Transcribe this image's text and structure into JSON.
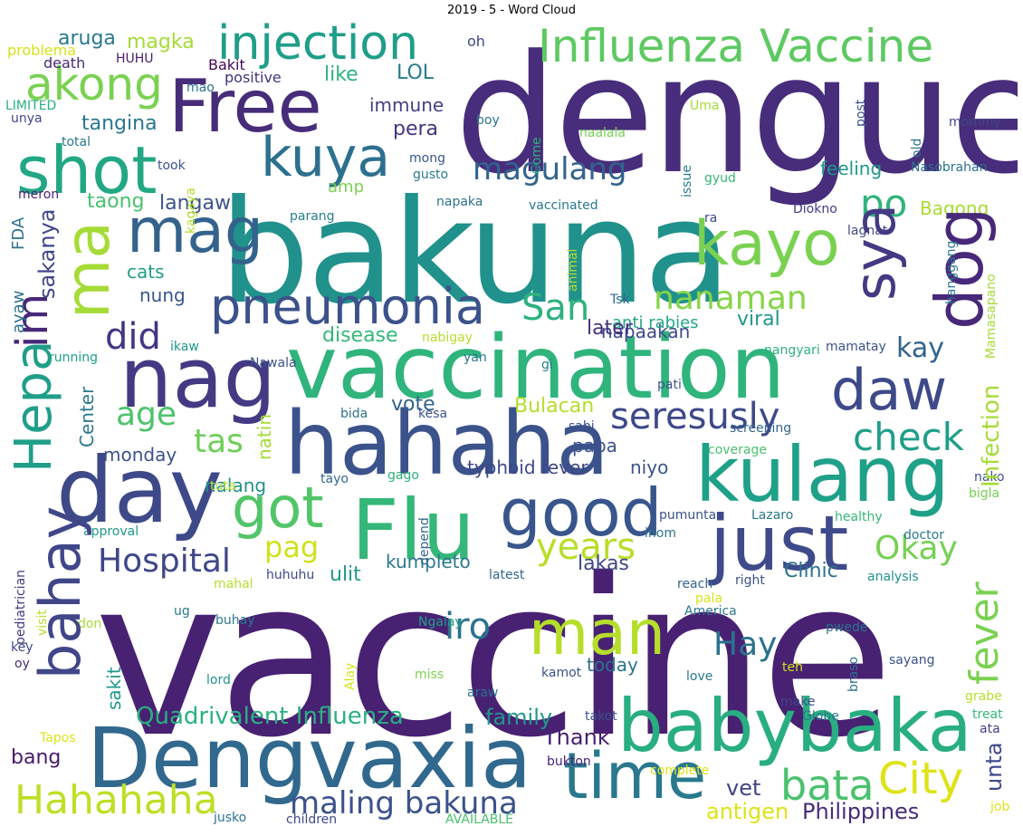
{
  "title": "2019 - 5 - Word Cloud",
  "words": [
    {
      "text": "vaccine",
      "color": "#482173"
    },
    {
      "text": "dengue",
      "color": "#472d7b"
    },
    {
      "text": "bakuna",
      "color": "#21918c"
    },
    {
      "text": "vaccination",
      "color": "#2fb47c"
    },
    {
      "text": "hahaha",
      "color": "#3b528b"
    },
    {
      "text": "Dengvaxia",
      "color": "#31688e"
    },
    {
      "text": "babybaka",
      "color": "#28ae80"
    },
    {
      "text": "day",
      "color": "#3e4989"
    },
    {
      "text": "Flu",
      "color": "#35b779"
    },
    {
      "text": "kulang",
      "color": "#1fa088"
    },
    {
      "text": "just",
      "color": "#3e4a89"
    },
    {
      "text": "nag",
      "color": "#443a83"
    },
    {
      "text": "Free",
      "color": "#472c7a"
    },
    {
      "text": "shot",
      "color": "#22a785"
    },
    {
      "text": "Influenza Vaccine",
      "color": "#5ec962"
    },
    {
      "text": "injection",
      "color": "#1f9e89"
    },
    {
      "text": "kayo",
      "color": "#7ad151"
    },
    {
      "text": "good",
      "color": "#39568c"
    },
    {
      "text": "time",
      "color": "#2a788e"
    },
    {
      "text": "man",
      "color": "#b5de2b"
    },
    {
      "text": "pneumonia",
      "color": "#3b528b"
    },
    {
      "text": "kuya",
      "color": "#2d708e"
    },
    {
      "text": "mag",
      "color": "#33628d"
    },
    {
      "text": "akong",
      "color": "#7ad151"
    },
    {
      "text": "got",
      "color": "#52c569"
    },
    {
      "text": "daw",
      "color": "#3e4989"
    },
    {
      "text": "Hahahaha",
      "color": "#bddf26"
    },
    {
      "text": "City",
      "color": "#dde318"
    },
    {
      "text": "bata",
      "color": "#4ac16d"
    },
    {
      "text": "maling bakuna",
      "color": "#3b528b"
    },
    {
      "text": "magulang",
      "color": "#33638d"
    },
    {
      "text": "seresusly",
      "color": "#3e4989"
    },
    {
      "text": "San",
      "color": "#2db27d"
    },
    {
      "text": "nanaman",
      "color": "#86d549"
    },
    {
      "text": "check",
      "color": "#1f9e89"
    },
    {
      "text": "years",
      "color": "#b8de29"
    },
    {
      "text": "Hospital",
      "color": "#3f4788"
    },
    {
      "text": "po",
      "color": "#2fb47c"
    },
    {
      "text": "Okay",
      "color": "#75d054"
    },
    {
      "text": "did",
      "color": "#453581"
    },
    {
      "text": "age",
      "color": "#4ec36b"
    },
    {
      "text": "tas",
      "color": "#6ece58"
    },
    {
      "text": "iro",
      "color": "#2c728e"
    },
    {
      "text": "Hay",
      "color": "#2c728e"
    },
    {
      "text": "pag",
      "color": "#d0e11c"
    },
    {
      "text": "Quadrivalent Influenza",
      "color": "#2ab07f"
    },
    {
      "text": "kay",
      "color": "#33638d"
    },
    {
      "text": "Thank",
      "color": "#481f70"
    },
    {
      "text": "family",
      "color": "#1f988b"
    },
    {
      "text": "Philippines",
      "color": "#472c7a"
    },
    {
      "text": "antigen",
      "color": "#dde318"
    },
    {
      "text": "vet",
      "color": "#414487"
    },
    {
      "text": "aruga",
      "color": "#2a788e"
    },
    {
      "text": "magka",
      "color": "#a5db36"
    },
    {
      "text": "immune",
      "color": "#433e85"
    },
    {
      "text": "pera",
      "color": "#46337e"
    },
    {
      "text": "LOL",
      "color": "#287c8e"
    },
    {
      "text": "like",
      "color": "#2db27d"
    },
    {
      "text": "tangina",
      "color": "#2a788e"
    },
    {
      "text": "taong",
      "color": "#4ac16d"
    },
    {
      "text": "langaw",
      "color": "#3b528b"
    },
    {
      "text": "cats",
      "color": "#1f9e89"
    },
    {
      "text": "nung",
      "color": "#39568c"
    },
    {
      "text": "napaakan",
      "color": "#3e4a89"
    },
    {
      "text": "Bagong",
      "color": "#a8db34"
    },
    {
      "text": "feeling",
      "color": "#1f988b"
    },
    {
      "text": "amp",
      "color": "#7ad151"
    },
    {
      "text": "disease",
      "color": "#35b779"
    },
    {
      "text": "viral",
      "color": "#1f988b"
    },
    {
      "text": "anti rabies",
      "color": "#22a785"
    },
    {
      "text": "later",
      "color": "#46307e"
    },
    {
      "text": "vote",
      "color": "#33628d"
    },
    {
      "text": "Bulacan",
      "color": "#b5de2b"
    },
    {
      "text": "papa",
      "color": "#3b528b"
    },
    {
      "text": "monday",
      "color": "#3b528b"
    },
    {
      "text": "nalang",
      "color": "#21918c"
    },
    {
      "text": "niyo",
      "color": "#39568c"
    },
    {
      "text": "typhoid fever",
      "color": "#3f4788"
    },
    {
      "text": "kumpleto",
      "color": "#2a788e"
    },
    {
      "text": "lakas",
      "color": "#3f4788"
    },
    {
      "text": "ulit",
      "color": "#1f988b"
    },
    {
      "text": "Clinic",
      "color": "#2c728e"
    },
    {
      "text": "bang",
      "color": "#481a6c"
    },
    {
      "text": "today",
      "color": "#2c728e"
    },
    {
      "text": "problema",
      "color": "#d8e219"
    },
    {
      "text": "death",
      "color": "#482878"
    },
    {
      "text": "HUHU",
      "color": "#481a6c"
    },
    {
      "text": "oh",
      "color": "#3e4989"
    },
    {
      "text": "Bakit",
      "color": "#450559"
    },
    {
      "text": "positive",
      "color": "#46327e"
    },
    {
      "text": "mao",
      "color": "#2c728e"
    },
    {
      "text": "LIMITED",
      "color": "#29af7f"
    },
    {
      "text": "unya",
      "color": "#3f4788"
    },
    {
      "text": "total",
      "color": "#2a788e"
    },
    {
      "text": "took",
      "color": "#3b528b"
    },
    {
      "text": "meron",
      "color": "#482173"
    },
    {
      "text": "Uma",
      "color": "#a5db36"
    },
    {
      "text": "boy",
      "color": "#2c728e"
    },
    {
      "text": "naalala",
      "color": "#75d054"
    },
    {
      "text": "mong",
      "color": "#39568c"
    },
    {
      "text": "gusto",
      "color": "#2a788e"
    },
    {
      "text": "napaka",
      "color": "#2c728e"
    },
    {
      "text": "vaccinated",
      "color": "#2a788e"
    },
    {
      "text": "parang",
      "color": "#277f8e"
    },
    {
      "text": "Diokno",
      "color": "#443983"
    },
    {
      "text": "ra",
      "color": "#3e4989"
    },
    {
      "text": "gyud",
      "color": "#35b779"
    },
    {
      "text": "lagnat",
      "color": "#3e4989"
    },
    {
      "text": "Nasobrahan",
      "color": "#2c728e"
    },
    {
      "text": "mommy",
      "color": "#404688"
    },
    {
      "text": "Tsk",
      "color": "#31688e"
    },
    {
      "text": "ikaw",
      "color": "#1f988b"
    },
    {
      "text": "nabigay",
      "color": "#b5de2b"
    },
    {
      "text": "nangyari",
      "color": "#2db27d"
    },
    {
      "text": "mamatay",
      "color": "#3b528b"
    },
    {
      "text": "running",
      "color": "#1fa088"
    },
    {
      "text": "Nawala",
      "color": "#3b528b"
    },
    {
      "text": "yan",
      "color": "#2a788e"
    },
    {
      "text": "gi",
      "color": "#277f8e"
    },
    {
      "text": "pati",
      "color": "#3b528b"
    },
    {
      "text": "bida",
      "color": "#2c728e"
    },
    {
      "text": "kesa",
      "color": "#3b528b"
    },
    {
      "text": "sabi",
      "color": "#3b528b"
    },
    {
      "text": "screening",
      "color": "#33638d"
    },
    {
      "text": "coverage",
      "color": "#4ac16d"
    },
    {
      "text": "tayo",
      "color": "#31688e"
    },
    {
      "text": "gago",
      "color": "#2db27d"
    },
    {
      "text": "tuta",
      "color": "#b5de2b"
    },
    {
      "text": "nako",
      "color": "#3b528b"
    },
    {
      "text": "bigla",
      "color": "#75d054"
    },
    {
      "text": "approval",
      "color": "#1f988b"
    },
    {
      "text": "pumunta",
      "color": "#3b528b"
    },
    {
      "text": "Lazaro",
      "color": "#2a788e"
    },
    {
      "text": "healthy",
      "color": "#35b779"
    },
    {
      "text": "inom",
      "color": "#2c728e"
    },
    {
      "text": "doctor",
      "color": "#2a788e"
    },
    {
      "text": "huhuhu",
      "color": "#3e4989"
    },
    {
      "text": "latest",
      "color": "#31688e"
    },
    {
      "text": "reach",
      "color": "#33638d"
    },
    {
      "text": "right",
      "color": "#3b528b"
    },
    {
      "text": "analysis",
      "color": "#21918c"
    },
    {
      "text": "mahal",
      "color": "#b5de2b"
    },
    {
      "text": "pala",
      "color": "#d8e219"
    },
    {
      "text": "don",
      "color": "#a5db36"
    },
    {
      "text": "ug",
      "color": "#2a788e"
    },
    {
      "text": "buhay",
      "color": "#2a788e"
    },
    {
      "text": "America",
      "color": "#2a788e"
    },
    {
      "text": "Ngalay",
      "color": "#1fa088"
    },
    {
      "text": "pwede",
      "color": "#2c728e"
    },
    {
      "text": "key",
      "color": "#3e4989"
    },
    {
      "text": "oy",
      "color": "#472c7a"
    },
    {
      "text": "miss",
      "color": "#7ad151"
    },
    {
      "text": "kamot",
      "color": "#3b528b"
    },
    {
      "text": "lord",
      "color": "#21918c"
    },
    {
      "text": "araw",
      "color": "#2c728e"
    },
    {
      "text": "love",
      "color": "#2a788e"
    },
    {
      "text": "sayang",
      "color": "#3b528b"
    },
    {
      "text": "teh",
      "color": "#d0e11c"
    },
    {
      "text": "make",
      "color": "#3e4989"
    },
    {
      "text": "grabe",
      "color": "#b5de2b"
    },
    {
      "text": "treat",
      "color": "#35b779"
    },
    {
      "text": "ata",
      "color": "#433e85"
    },
    {
      "text": "takot",
      "color": "#3b528b"
    },
    {
      "text": "Globe",
      "color": "#2a788e"
    },
    {
      "text": "Tapos",
      "color": "#dde318"
    },
    {
      "text": "bukton",
      "color": "#482173"
    },
    {
      "text": "complete",
      "color": "#dde318"
    },
    {
      "text": "jusko",
      "color": "#2c728e"
    },
    {
      "text": "children",
      "color": "#3e4989"
    },
    {
      "text": "AVAILABLE",
      "color": "#4ac16d"
    },
    {
      "text": "job",
      "color": "#dde318"
    },
    {
      "text": "Hepa",
      "color": "#1f9e89"
    },
    {
      "text": "im",
      "color": "#482878"
    },
    {
      "text": "ma",
      "color": "#a5db36"
    },
    {
      "text": "bahay",
      "color": "#404688"
    },
    {
      "text": "sya",
      "color": "#443983"
    },
    {
      "text": "dog",
      "color": "#482878"
    },
    {
      "text": "fever",
      "color": "#7ad151"
    },
    {
      "text": "Infection",
      "color": "#a5db36"
    },
    {
      "text": "unta",
      "color": "#3e4989"
    },
    {
      "text": "sakanya",
      "color": "#404688"
    },
    {
      "text": "ayaw",
      "color": "#2c728e"
    },
    {
      "text": "FDA",
      "color": "#2c728e"
    },
    {
      "text": "kagaya",
      "color": "#b5de2b"
    },
    {
      "text": "Center",
      "color": "#2a788e"
    },
    {
      "text": "natin",
      "color": "#a5db36"
    },
    {
      "text": "sakit",
      "color": "#1f988b"
    },
    {
      "text": "depend",
      "color": "#33638d"
    },
    {
      "text": "pediatrician",
      "color": "#443983"
    },
    {
      "text": "visit",
      "color": "#b5de2b"
    },
    {
      "text": "Alay",
      "color": "#d8e219"
    },
    {
      "text": "braso",
      "color": "#2c728e"
    },
    {
      "text": "post",
      "color": "#3b528b"
    },
    {
      "text": "old",
      "color": "#2c728e"
    },
    {
      "text": "issue",
      "color": "#2a788e"
    },
    {
      "text": "Come",
      "color": "#2db27d"
    },
    {
      "text": "animal",
      "color": "#b5de2b"
    },
    {
      "text": "hanggang",
      "color": "#2a788e"
    },
    {
      "text": "Mamasapano",
      "color": "#a5db36"
    }
  ]
}
